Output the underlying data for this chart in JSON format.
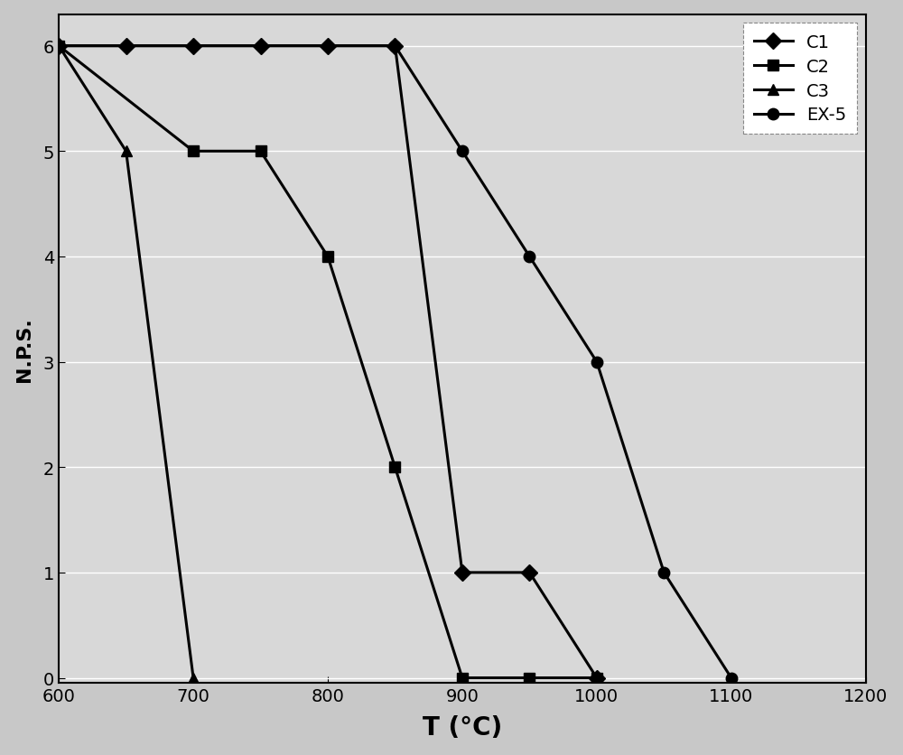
{
  "title": "",
  "xlabel": "T (°C)",
  "ylabel": "N.P.S.",
  "xlim": [
    600,
    1200
  ],
  "ylim": [
    -0.05,
    6.3
  ],
  "xticks": [
    600,
    700,
    800,
    900,
    1000,
    1100,
    1200
  ],
  "yticks": [
    0,
    1,
    2,
    3,
    4,
    5,
    6
  ],
  "series": {
    "C1": {
      "x": [
        600,
        650,
        700,
        750,
        800,
        850,
        900,
        950,
        1000
      ],
      "y": [
        6,
        6,
        6,
        6,
        6,
        6,
        1,
        1,
        0
      ],
      "marker": "D",
      "markersize": 9,
      "linewidth": 2.2
    },
    "C2": {
      "x": [
        600,
        700,
        750,
        800,
        850,
        900,
        950,
        1000
      ],
      "y": [
        6,
        5,
        5,
        4,
        2,
        0,
        0,
        0
      ],
      "marker": "s",
      "markersize": 9,
      "linewidth": 2.2
    },
    "C3": {
      "x": [
        600,
        650,
        700
      ],
      "y": [
        6,
        5,
        0
      ],
      "marker": "^",
      "markersize": 9,
      "linewidth": 2.2
    },
    "EX-5": {
      "x": [
        600,
        850,
        900,
        950,
        1000,
        1050,
        1100
      ],
      "y": [
        6,
        6,
        5,
        4,
        3,
        1,
        0
      ],
      "marker": "o",
      "markersize": 9,
      "linewidth": 2.2
    }
  },
  "legend_order": [
    "C1",
    "C2",
    "C3",
    "EX-5"
  ],
  "plot_bg_color": "#d8d8d8",
  "fig_bg_color": "#c8c8c8",
  "line_color": "#000000",
  "grid_color": "#ffffff",
  "grid_linestyle": "-",
  "grid_linewidth": 1.0,
  "xlabel_fontsize": 20,
  "ylabel_fontsize": 16,
  "tick_fontsize": 14,
  "legend_fontsize": 14,
  "legend_loc": "upper right"
}
